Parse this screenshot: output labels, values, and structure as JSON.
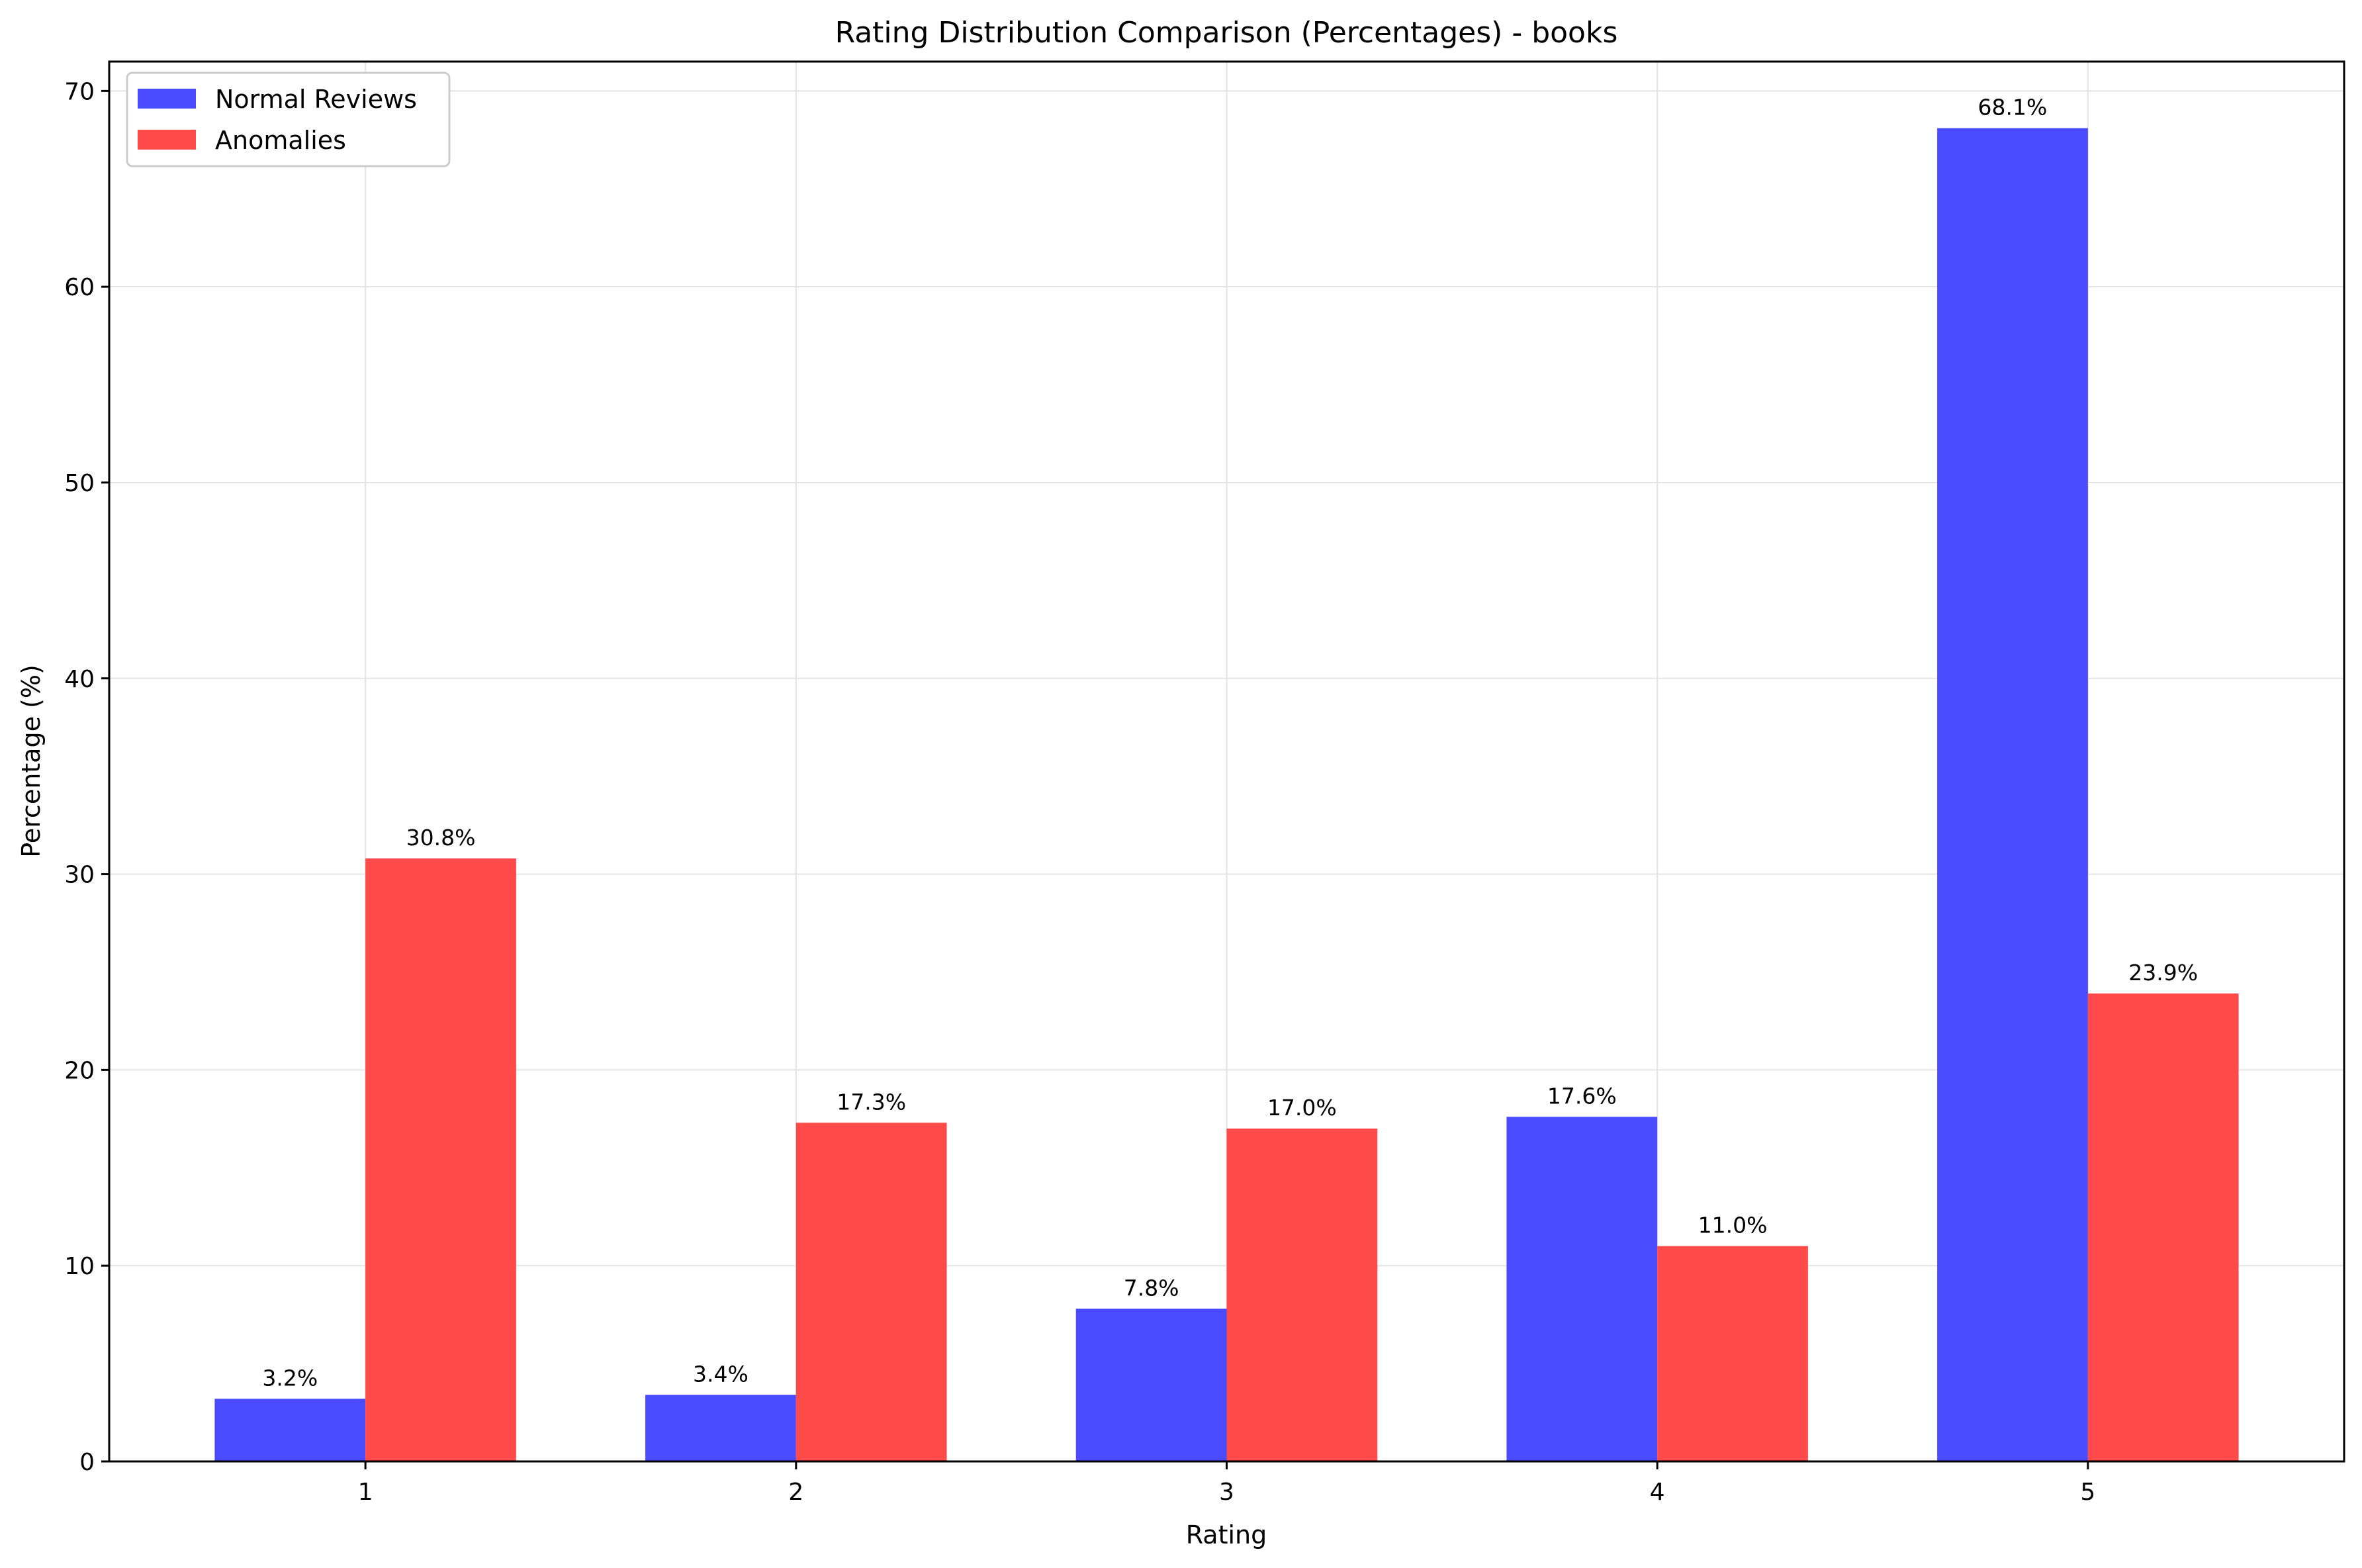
{
  "chart_data": {
    "type": "bar",
    "title": "Rating Distribution Comparison (Percentages) - books",
    "xlabel": "Rating",
    "ylabel": "Percentage (%)",
    "categories": [
      "1",
      "2",
      "3",
      "4",
      "5"
    ],
    "series": [
      {
        "name": "Normal Reviews",
        "color": "#4a4aff",
        "values": [
          3.2,
          3.4,
          7.8,
          17.6,
          68.1
        ],
        "labels": [
          "3.2%",
          "3.4%",
          "7.8%",
          "17.6%",
          "68.1%"
        ]
      },
      {
        "name": "Anomalies",
        "color": "#ff4a4a",
        "values": [
          30.8,
          17.3,
          17.0,
          11.0,
          23.9
        ],
        "labels": [
          "30.8%",
          "17.3%",
          "17.0%",
          "11.0%",
          "23.9%"
        ]
      }
    ],
    "ylim": [
      0,
      71.5
    ],
    "yticks": [
      0,
      10,
      20,
      30,
      40,
      50,
      60,
      70
    ],
    "grid": true,
    "legend_position": "upper-left"
  }
}
